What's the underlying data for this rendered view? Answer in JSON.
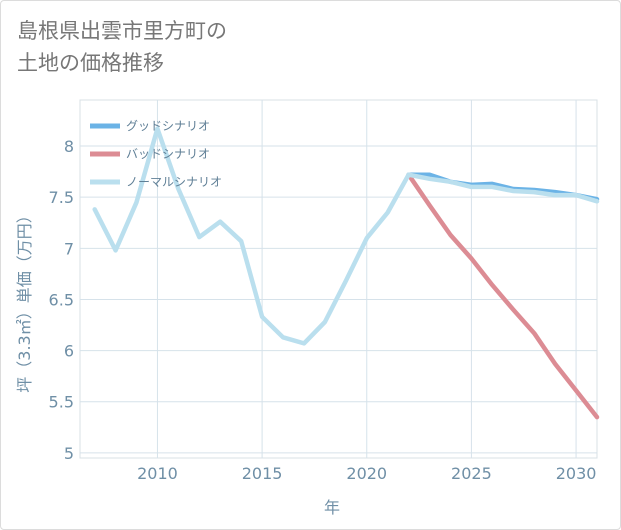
{
  "title_lines": [
    "島根県出雲市里方町の",
    "土地の価格推移"
  ],
  "chart_data": {
    "type": "line",
    "title": "島根県出雲市里方町の土地の価格推移",
    "xlabel": "年",
    "ylabel": "坪（3.3㎡）単価（万円）",
    "xlim": [
      2006.3,
      2031
    ],
    "ylim": [
      4.95,
      8.45
    ],
    "x_ticks": [
      2010,
      2015,
      2020,
      2025,
      2030
    ],
    "y_ticks": [
      5,
      5.5,
      6,
      6.5,
      7,
      7.5,
      8
    ],
    "x_tick_labels": [
      "2010",
      "2015",
      "2020",
      "2025",
      "2030"
    ],
    "y_tick_labels": [
      "5",
      "5.5",
      "6",
      "6.5",
      "7",
      "7.5",
      "8"
    ],
    "grid": true,
    "legend_position": "top-left",
    "series": [
      {
        "name": "グッドシナリオ",
        "color": "#6bb3e6",
        "x": [
          2022,
          2023,
          2024,
          2025,
          2026,
          2027,
          2028,
          2029,
          2030,
          2031
        ],
        "y": [
          7.72,
          7.72,
          7.65,
          7.62,
          7.63,
          7.58,
          7.57,
          7.55,
          7.52,
          7.48
        ]
      },
      {
        "name": "バッドシナリオ",
        "color": "#dc8c94",
        "x": [
          2022,
          2023,
          2024,
          2025,
          2026,
          2027,
          2028,
          2029,
          2030,
          2031
        ],
        "y": [
          7.72,
          7.42,
          7.13,
          6.9,
          6.64,
          6.4,
          6.17,
          5.87,
          5.61,
          5.35
        ]
      },
      {
        "name": "ノーマルシナリオ",
        "color": "#badfee",
        "x": [
          2007,
          2008,
          2009,
          2010,
          2011,
          2012,
          2013,
          2014,
          2015,
          2016,
          2017,
          2018,
          2019,
          2020,
          2021,
          2022,
          2023,
          2024,
          2025,
          2026,
          2027,
          2028,
          2029,
          2030,
          2031
        ],
        "y": [
          7.38,
          6.98,
          7.45,
          8.17,
          7.58,
          7.11,
          7.26,
          7.07,
          6.33,
          6.13,
          6.07,
          6.28,
          6.68,
          7.1,
          7.35,
          7.72,
          7.68,
          7.65,
          7.6,
          7.6,
          7.56,
          7.55,
          7.52,
          7.52,
          7.46
        ]
      }
    ]
  }
}
